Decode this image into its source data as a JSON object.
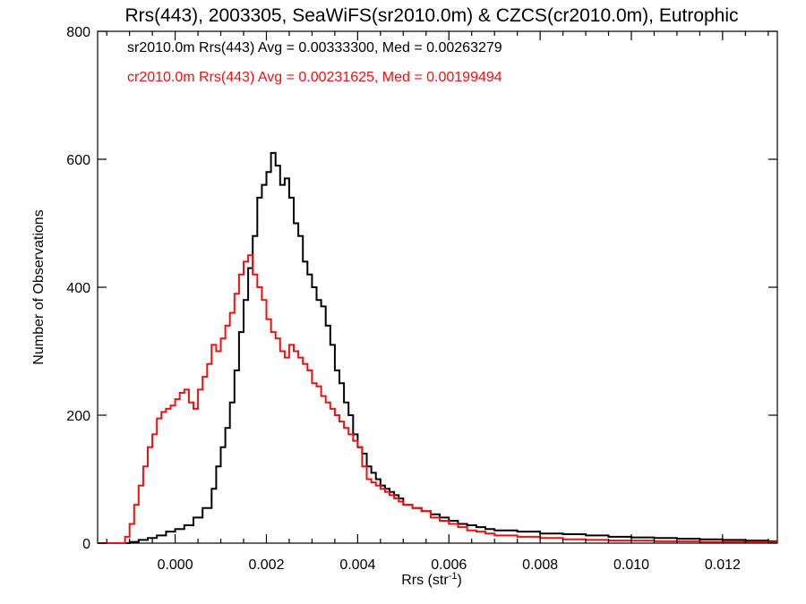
{
  "chart_data": {
    "type": "line",
    "title": "Rrs(443), 2003305, SeaWiFS(sr2010.0m) & CZCS(cr2010.0m), Eutrophic",
    "xlabel": "Rrs (str",
    "xlabel_sup": "-1",
    "xlabel_end": ")",
    "ylabel": "Number of Observations",
    "xlim": [
      -0.0017,
      0.0132
    ],
    "ylim": [
      0,
      800
    ],
    "xticks": [
      {
        "v": 0.0,
        "label": "0.000"
      },
      {
        "v": 0.002,
        "label": "0.002"
      },
      {
        "v": 0.004,
        "label": "0.004"
      },
      {
        "v": 0.006,
        "label": "0.006"
      },
      {
        "v": 0.008,
        "label": "0.008"
      },
      {
        "v": 0.01,
        "label": "0.010"
      },
      {
        "v": 0.012,
        "label": "0.012"
      }
    ],
    "yticks": [
      {
        "v": 0,
        "label": "0"
      },
      {
        "v": 200,
        "label": "200"
      },
      {
        "v": 400,
        "label": "400"
      },
      {
        "v": 600,
        "label": "600"
      },
      {
        "v": 800,
        "label": "800"
      }
    ],
    "annotations": [
      {
        "text": "sr2010.0m Rrs(443) Avg = 0.00333300, Med = 0.00263279",
        "color": "#000000"
      },
      {
        "text": "cr2010.0m Rrs(443) Avg = 0.00231625, Med = 0.00199494",
        "color": "#ee1111"
      }
    ],
    "series": [
      {
        "color": "#000000",
        "x": [
          -0.0017,
          -0.0012,
          -0.001,
          -0.0008,
          -0.0006,
          -0.0004,
          -0.0002,
          0.0,
          0.0002,
          0.0004,
          0.0006,
          0.0008,
          0.0009,
          0.001,
          0.0011,
          0.0012,
          0.0013,
          0.0014,
          0.0015,
          0.0016,
          0.0017,
          0.0018,
          0.0019,
          0.002,
          0.0021,
          0.0022,
          0.0023,
          0.0024,
          0.0025,
          0.0026,
          0.0027,
          0.0028,
          0.0029,
          0.003,
          0.0031,
          0.0032,
          0.0033,
          0.0034,
          0.0035,
          0.0036,
          0.0037,
          0.0038,
          0.0039,
          0.004,
          0.0041,
          0.0042,
          0.0043,
          0.0044,
          0.0045,
          0.0046,
          0.0047,
          0.0048,
          0.0049,
          0.005,
          0.0052,
          0.0054,
          0.0056,
          0.0058,
          0.006,
          0.0062,
          0.0064,
          0.0066,
          0.0068,
          0.007,
          0.0075,
          0.008,
          0.0085,
          0.009,
          0.0095,
          0.01,
          0.0105,
          0.011,
          0.0115,
          0.012,
          0.0125,
          0.013,
          0.0132
        ],
        "y": [
          0,
          0,
          2,
          5,
          8,
          12,
          18,
          22,
          28,
          40,
          55,
          85,
          120,
          150,
          180,
          220,
          270,
          330,
          380,
          430,
          480,
          540,
          560,
          580,
          610,
          590,
          560,
          570,
          540,
          500,
          480,
          440,
          420,
          400,
          380,
          370,
          340,
          310,
          270,
          250,
          220,
          200,
          170,
          150,
          140,
          120,
          110,
          100,
          90,
          85,
          80,
          75,
          70,
          60,
          55,
          50,
          45,
          40,
          35,
          30,
          28,
          25,
          22,
          20,
          18,
          15,
          14,
          12,
          10,
          9,
          8,
          7,
          6,
          5,
          4,
          3,
          3
        ]
      },
      {
        "color": "#ee1111",
        "x": [
          -0.0017,
          -0.0012,
          -0.0011,
          -0.001,
          -0.0009,
          -0.0008,
          -0.0007,
          -0.0006,
          -0.0005,
          -0.0004,
          -0.0003,
          -0.0002,
          -0.0001,
          0.0,
          0.0001,
          0.0002,
          0.0003,
          0.0004,
          0.0005,
          0.0006,
          0.0007,
          0.0008,
          0.0009,
          0.001,
          0.0011,
          0.0012,
          0.0013,
          0.0014,
          0.0015,
          0.0016,
          0.0017,
          0.0018,
          0.0019,
          0.002,
          0.0021,
          0.0022,
          0.0023,
          0.0024,
          0.0025,
          0.0026,
          0.0027,
          0.0028,
          0.0029,
          0.003,
          0.0031,
          0.0032,
          0.0033,
          0.0034,
          0.0035,
          0.0036,
          0.0037,
          0.0038,
          0.0039,
          0.004,
          0.0041,
          0.0042,
          0.0043,
          0.0044,
          0.0045,
          0.0046,
          0.0047,
          0.0048,
          0.0049,
          0.005,
          0.0052,
          0.0054,
          0.0056,
          0.0058,
          0.006,
          0.0062,
          0.0064,
          0.0066,
          0.0068,
          0.007,
          0.0075,
          0.008,
          0.0085,
          0.009,
          0.0095,
          0.01,
          0.0105,
          0.011,
          0.0115,
          0.012,
          0.0125,
          0.013,
          0.0132
        ],
        "y": [
          0,
          0,
          10,
          30,
          60,
          90,
          120,
          150,
          170,
          195,
          205,
          210,
          215,
          225,
          235,
          240,
          220,
          210,
          240,
          260,
          280,
          310,
          300,
          320,
          340,
          360,
          390,
          420,
          440,
          450,
          420,
          400,
          380,
          350,
          330,
          320,
          300,
          290,
          310,
          300,
          290,
          280,
          270,
          250,
          245,
          230,
          220,
          210,
          200,
          190,
          180,
          170,
          160,
          150,
          120,
          100,
          95,
          90,
          85,
          80,
          75,
          70,
          65,
          60,
          55,
          50,
          40,
          35,
          30,
          25,
          20,
          18,
          15,
          12,
          10,
          8,
          6,
          5,
          4,
          4,
          3,
          3,
          2,
          2,
          2,
          2,
          2
        ]
      }
    ]
  }
}
